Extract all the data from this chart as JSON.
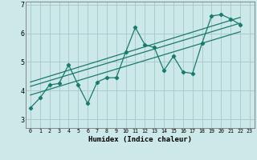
{
  "title": "",
  "xlabel": "Humidex (Indice chaleur)",
  "xlim": [
    -0.5,
    23.5
  ],
  "ylim": [
    2.7,
    7.1
  ],
  "xticks": [
    0,
    1,
    2,
    3,
    4,
    5,
    6,
    7,
    8,
    9,
    10,
    11,
    12,
    13,
    14,
    15,
    16,
    17,
    18,
    19,
    20,
    21,
    22,
    23
  ],
  "yticks": [
    3,
    4,
    5,
    6,
    7
  ],
  "bg_color": "#cce8e8",
  "grid_color": "#aacccc",
  "line_color": "#1a7a6e",
  "data_x": [
    0,
    1,
    2,
    3,
    4,
    5,
    6,
    7,
    8,
    9,
    10,
    11,
    12,
    13,
    14,
    15,
    16,
    17,
    18,
    19,
    20,
    21,
    22
  ],
  "data_y": [
    3.4,
    3.75,
    4.2,
    4.25,
    4.9,
    4.2,
    3.55,
    4.3,
    4.45,
    4.45,
    5.35,
    6.2,
    5.6,
    5.5,
    4.7,
    5.2,
    4.65,
    4.6,
    5.65,
    6.6,
    6.65,
    6.5,
    6.3
  ],
  "trend1_x": [
    0,
    22
  ],
  "trend1_y": [
    3.85,
    6.05
  ],
  "trend2_x": [
    0,
    22
  ],
  "trend2_y": [
    4.15,
    6.35
  ],
  "trend3_x": [
    0,
    22
  ],
  "trend3_y": [
    4.3,
    6.55
  ]
}
